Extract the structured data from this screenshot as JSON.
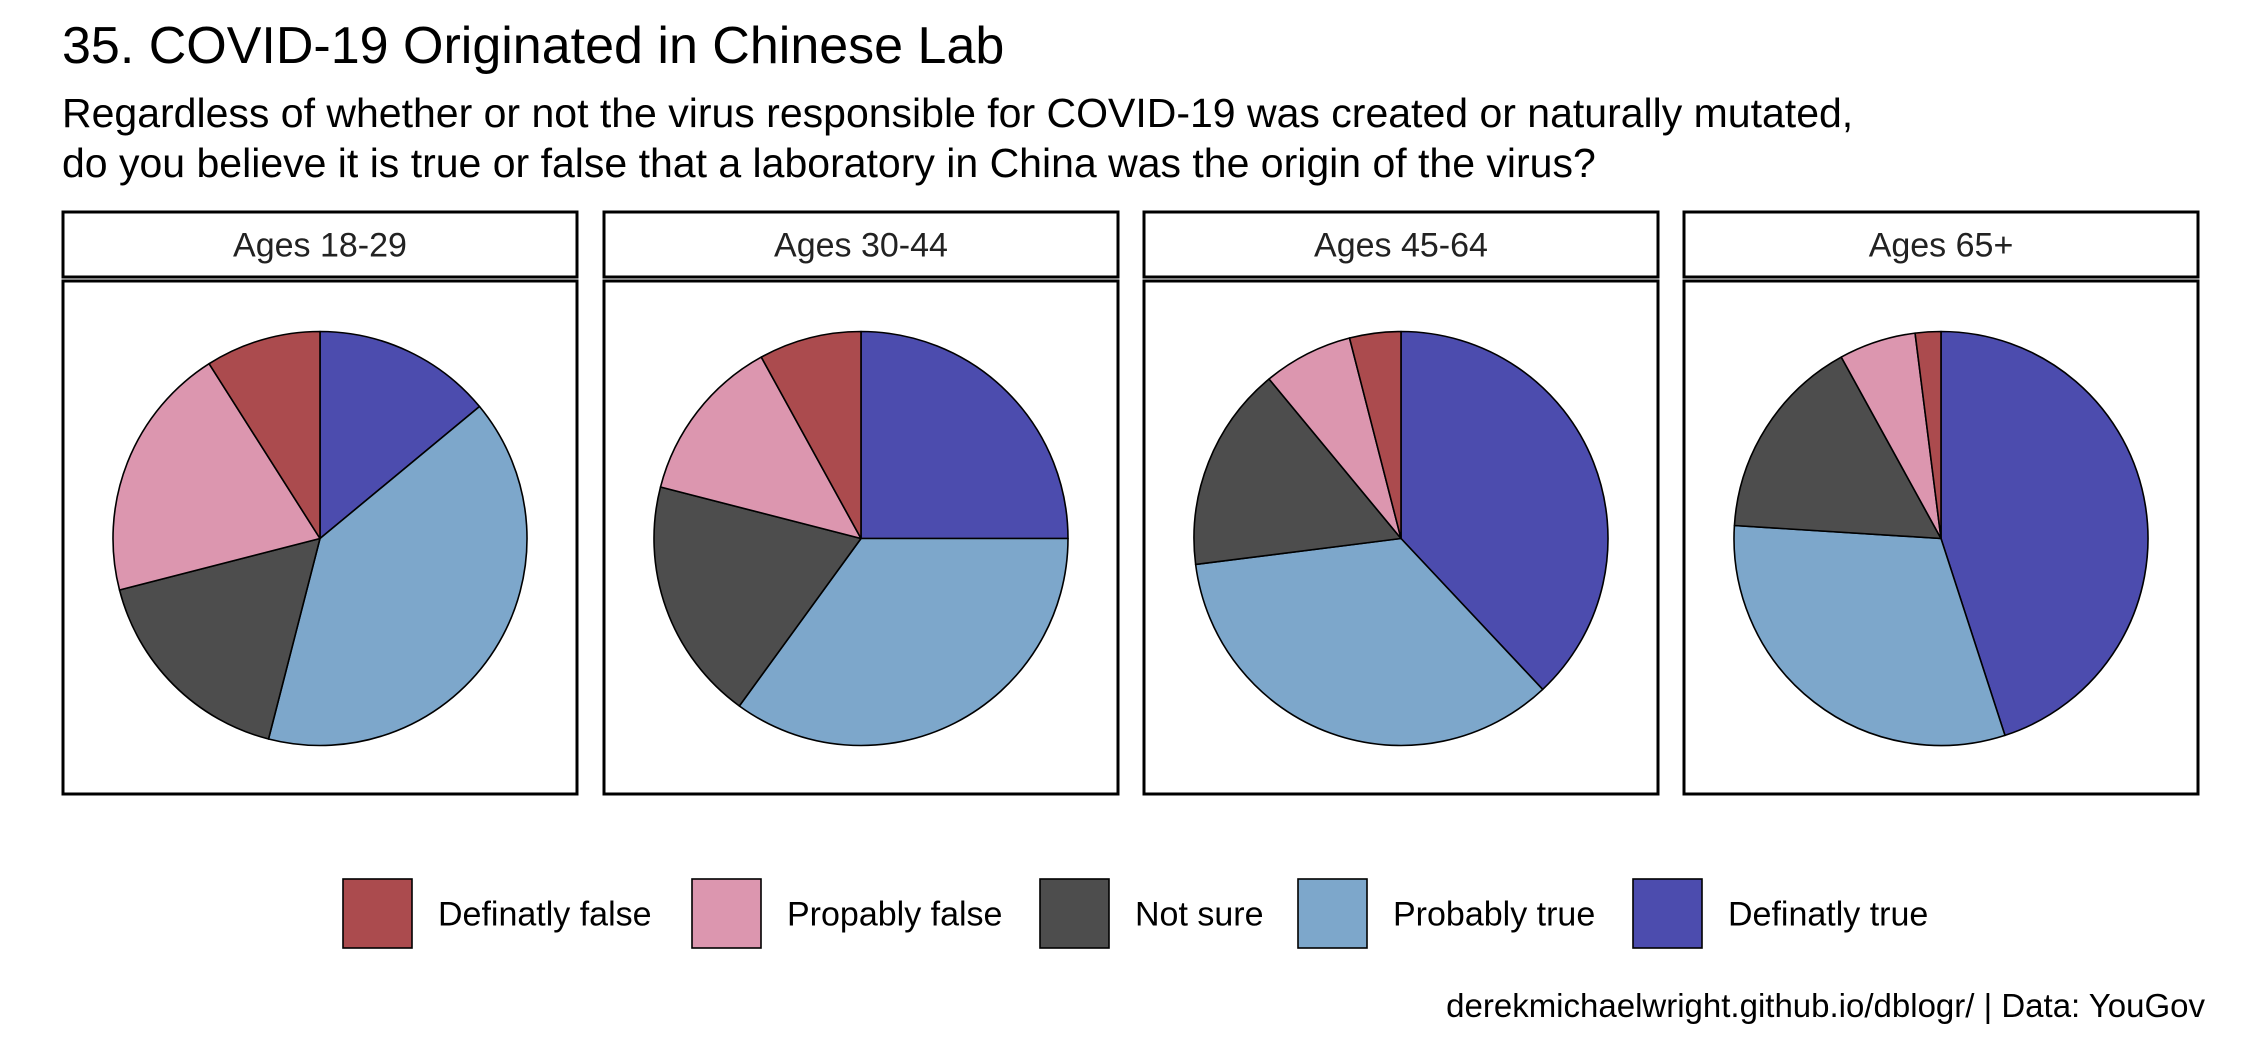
{
  "chart_data": {
    "type": "pie",
    "title": "35. COVID-19 Originated in Chinese Lab",
    "subtitle_lines": [
      "Regardless of whether or not the virus responsible for COVID-19 was created or naturally mutated,",
      "do you believe it is true or false that a laboratory in China was the origin of the virus?"
    ],
    "categories": [
      "Definatly false",
      "Propably false",
      "Not sure",
      "Probably true",
      "Definatly true"
    ],
    "colors": [
      "#AB4B4E",
      "#DC96AF",
      "#4D4D4D",
      "#7DA7CB",
      "#4C4CAE"
    ],
    "facets": [
      {
        "label": "Ages 18-29",
        "values": [
          9,
          20,
          17,
          40,
          14
        ]
      },
      {
        "label": "Ages 30-44",
        "values": [
          8,
          13,
          19,
          35,
          25
        ]
      },
      {
        "label": "Ages 45-64",
        "values": [
          4,
          7,
          16,
          35,
          38
        ]
      },
      {
        "label": "Ages 65+",
        "values": [
          2,
          6,
          16,
          31,
          45
        ]
      }
    ],
    "legend_position": "bottom",
    "grid": false
  },
  "caption": "derekmichaelwright.github.io/dblogr/ | Data: YouGov"
}
